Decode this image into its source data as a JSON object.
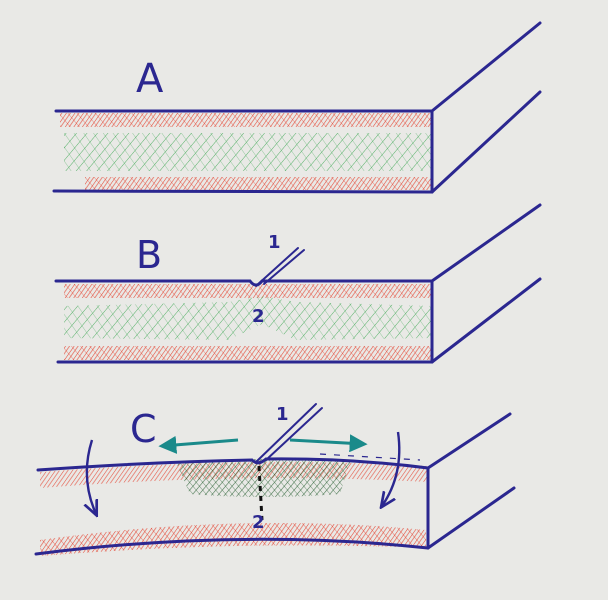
{
  "panels": [
    {
      "letter": "A",
      "markers": []
    },
    {
      "letter": "B",
      "markers": [
        "1",
        "2"
      ]
    },
    {
      "letter": "C",
      "markers": [
        "1",
        "2"
      ]
    }
  ],
  "colors": {
    "paper": "#e9e9e6",
    "ink": "#2b2790",
    "tension_hatch": "#e5331f",
    "core_hatch": "#3aa650",
    "compression_hatch": "#1f5a2a",
    "arrow": "#1a8a8a",
    "crack": "#111111"
  }
}
